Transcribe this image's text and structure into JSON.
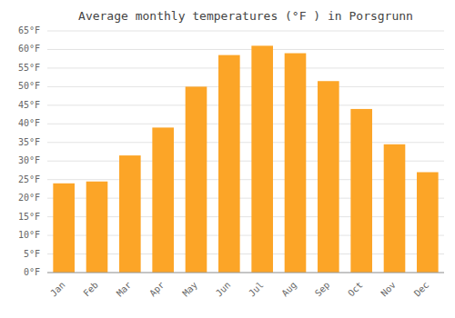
{
  "chart_data": {
    "type": "bar",
    "title": "Average monthly temperatures (°F ) in Porsgrunn",
    "categories": [
      "Jan",
      "Feb",
      "Mar",
      "Apr",
      "May",
      "Jun",
      "Jul",
      "Aug",
      "Sep",
      "Oct",
      "Nov",
      "Dec"
    ],
    "values": [
      24.0,
      24.5,
      31.5,
      39.0,
      50.0,
      58.5,
      61.0,
      59.0,
      51.5,
      44.0,
      34.5,
      27.0
    ],
    "color": "#FCA527",
    "ylim": [
      0,
      65
    ],
    "yticks": [
      {
        "value": 0,
        "label": "0°F"
      },
      {
        "value": 5,
        "label": "5°F"
      },
      {
        "value": 10,
        "label": "10°F"
      },
      {
        "value": 15,
        "label": "15°F"
      },
      {
        "value": 20,
        "label": "20°F"
      },
      {
        "value": 25,
        "label": "25°F"
      },
      {
        "value": 30,
        "label": "30°F"
      },
      {
        "value": 35,
        "label": "35°F"
      },
      {
        "value": 40,
        "label": "40°F"
      },
      {
        "value": 45,
        "label": "45°F"
      },
      {
        "value": 50,
        "label": "50°F"
      },
      {
        "value": 55,
        "label": "55°F"
      },
      {
        "value": 60,
        "label": "60°F"
      },
      {
        "value": 65,
        "label": "65°F"
      }
    ],
    "grid": true
  }
}
